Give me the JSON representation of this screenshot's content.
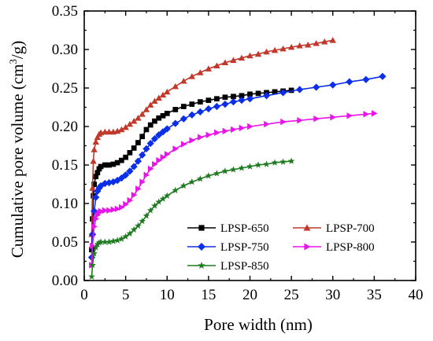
{
  "chart_data": {
    "type": "line",
    "title": "",
    "xlabel": "Pore width (nm)",
    "ylabel_parts": [
      "Cumulative pore volume (cm",
      "3",
      "/g)"
    ],
    "xlim": [
      0,
      40
    ],
    "ylim": [
      0.0,
      0.35
    ],
    "xticks": [
      "0",
      "5",
      "10",
      "15",
      "20",
      "25",
      "30",
      "35",
      "40"
    ],
    "yticks": [
      "0.00",
      "0.05",
      "0.10",
      "0.15",
      "0.20",
      "0.25",
      "0.30",
      "0.35"
    ],
    "grid": false,
    "legend_position": "bottom-right",
    "series": [
      {
        "name": "LPSP-650",
        "color": "#000000",
        "marker": "square",
        "points": [
          [
            0.9,
            0.04
          ],
          [
            1.0,
            0.08
          ],
          [
            1.1,
            0.11
          ],
          [
            1.2,
            0.125
          ],
          [
            1.4,
            0.135
          ],
          [
            1.6,
            0.14
          ],
          [
            1.8,
            0.145
          ],
          [
            2.0,
            0.148
          ],
          [
            2.5,
            0.15
          ],
          [
            3.0,
            0.15
          ],
          [
            3.5,
            0.151
          ],
          [
            4.0,
            0.153
          ],
          [
            4.5,
            0.156
          ],
          [
            5.0,
            0.16
          ],
          [
            5.5,
            0.166
          ],
          [
            6.0,
            0.172
          ],
          [
            6.5,
            0.179
          ],
          [
            7.0,
            0.187
          ],
          [
            7.5,
            0.196
          ],
          [
            8.0,
            0.202
          ],
          [
            8.5,
            0.207
          ],
          [
            9.0,
            0.211
          ],
          [
            9.5,
            0.214
          ],
          [
            10.0,
            0.217
          ],
          [
            11.0,
            0.222
          ],
          [
            12.0,
            0.226
          ],
          [
            13.0,
            0.229
          ],
          [
            14.0,
            0.232
          ],
          [
            15.0,
            0.234
          ],
          [
            16.0,
            0.236
          ],
          [
            17.0,
            0.238
          ],
          [
            18.0,
            0.239
          ],
          [
            19.0,
            0.24
          ],
          [
            20.0,
            0.242
          ],
          [
            21.0,
            0.243
          ],
          [
            22.0,
            0.244
          ],
          [
            23.0,
            0.245
          ],
          [
            24.0,
            0.246
          ],
          [
            25.0,
            0.247
          ]
        ]
      },
      {
        "name": "LPSP-700",
        "color": "#c0392b",
        "marker": "triangle-up",
        "points": [
          [
            0.9,
            0.06
          ],
          [
            1.0,
            0.12
          ],
          [
            1.1,
            0.155
          ],
          [
            1.2,
            0.17
          ],
          [
            1.4,
            0.18
          ],
          [
            1.6,
            0.186
          ],
          [
            1.8,
            0.19
          ],
          [
            2.0,
            0.192
          ],
          [
            2.5,
            0.193
          ],
          [
            3.0,
            0.193
          ],
          [
            3.5,
            0.193
          ],
          [
            4.0,
            0.194
          ],
          [
            4.5,
            0.196
          ],
          [
            5.0,
            0.199
          ],
          [
            5.5,
            0.203
          ],
          [
            6.0,
            0.207
          ],
          [
            6.5,
            0.211
          ],
          [
            7.0,
            0.216
          ],
          [
            7.5,
            0.222
          ],
          [
            8.0,
            0.228
          ],
          [
            8.5,
            0.233
          ],
          [
            9.0,
            0.237
          ],
          [
            9.5,
            0.241
          ],
          [
            10.0,
            0.245
          ],
          [
            11.0,
            0.252
          ],
          [
            12.0,
            0.259
          ],
          [
            13.0,
            0.265
          ],
          [
            14.0,
            0.27
          ],
          [
            15.0,
            0.275
          ],
          [
            16.0,
            0.279
          ],
          [
            17.0,
            0.283
          ],
          [
            18.0,
            0.286
          ],
          [
            19.0,
            0.289
          ],
          [
            20.0,
            0.292
          ],
          [
            21.0,
            0.294
          ],
          [
            22.0,
            0.297
          ],
          [
            23.0,
            0.299
          ],
          [
            24.0,
            0.301
          ],
          [
            25.0,
            0.303
          ],
          [
            26.0,
            0.305
          ],
          [
            27.0,
            0.306
          ],
          [
            28.0,
            0.308
          ],
          [
            29.0,
            0.31
          ],
          [
            30.0,
            0.312
          ]
        ]
      },
      {
        "name": "LPSP-750",
        "color": "#0b2ee8",
        "marker": "diamond",
        "points": [
          [
            0.9,
            0.03
          ],
          [
            1.0,
            0.06
          ],
          [
            1.2,
            0.09
          ],
          [
            1.4,
            0.108
          ],
          [
            1.6,
            0.116
          ],
          [
            1.8,
            0.12
          ],
          [
            2.0,
            0.123
          ],
          [
            2.5,
            0.126
          ],
          [
            3.0,
            0.127
          ],
          [
            3.5,
            0.128
          ],
          [
            4.0,
            0.13
          ],
          [
            4.5,
            0.133
          ],
          [
            5.0,
            0.137
          ],
          [
            5.5,
            0.142
          ],
          [
            6.0,
            0.148
          ],
          [
            6.5,
            0.155
          ],
          [
            7.0,
            0.163
          ],
          [
            7.5,
            0.171
          ],
          [
            8.0,
            0.178
          ],
          [
            8.5,
            0.184
          ],
          [
            9.0,
            0.189
          ],
          [
            9.5,
            0.193
          ],
          [
            10.0,
            0.197
          ],
          [
            11.0,
            0.204
          ],
          [
            12.0,
            0.21
          ],
          [
            13.0,
            0.215
          ],
          [
            14.0,
            0.219
          ],
          [
            15.0,
            0.223
          ],
          [
            16.0,
            0.226
          ],
          [
            17.0,
            0.229
          ],
          [
            18.0,
            0.232
          ],
          [
            19.0,
            0.234
          ],
          [
            20.0,
            0.236
          ],
          [
            22.0,
            0.24
          ],
          [
            24.0,
            0.244
          ],
          [
            26.0,
            0.248
          ],
          [
            28.0,
            0.251
          ],
          [
            30.0,
            0.254
          ],
          [
            32.0,
            0.258
          ],
          [
            34.0,
            0.261
          ],
          [
            36.0,
            0.265
          ]
        ]
      },
      {
        "name": "LPSP-800",
        "color": "#e815e8",
        "marker": "triangle-right",
        "points": [
          [
            0.9,
            0.02
          ],
          [
            1.0,
            0.045
          ],
          [
            1.2,
            0.07
          ],
          [
            1.4,
            0.08
          ],
          [
            1.6,
            0.085
          ],
          [
            1.8,
            0.088
          ],
          [
            2.0,
            0.09
          ],
          [
            2.5,
            0.091
          ],
          [
            3.0,
            0.091
          ],
          [
            3.5,
            0.092
          ],
          [
            4.0,
            0.093
          ],
          [
            4.5,
            0.095
          ],
          [
            5.0,
            0.099
          ],
          [
            5.5,
            0.104
          ],
          [
            6.0,
            0.111
          ],
          [
            6.5,
            0.119
          ],
          [
            7.0,
            0.128
          ],
          [
            7.5,
            0.137
          ],
          [
            8.0,
            0.145
          ],
          [
            8.5,
            0.151
          ],
          [
            9.0,
            0.156
          ],
          [
            9.5,
            0.16
          ],
          [
            10.0,
            0.164
          ],
          [
            11.0,
            0.171
          ],
          [
            12.0,
            0.177
          ],
          [
            13.0,
            0.182
          ],
          [
            14.0,
            0.186
          ],
          [
            15.0,
            0.189
          ],
          [
            16.0,
            0.192
          ],
          [
            17.0,
            0.194
          ],
          [
            18.0,
            0.196
          ],
          [
            19.0,
            0.198
          ],
          [
            20.0,
            0.2
          ],
          [
            22.0,
            0.203
          ],
          [
            24.0,
            0.206
          ],
          [
            26.0,
            0.208
          ],
          [
            28.0,
            0.21
          ],
          [
            30.0,
            0.212
          ],
          [
            32.0,
            0.214
          ],
          [
            34.0,
            0.216
          ],
          [
            35.0,
            0.217
          ]
        ]
      },
      {
        "name": "LPSP-850",
        "color": "#1e7a1e",
        "marker": "star",
        "points": [
          [
            0.9,
            0.005
          ],
          [
            1.0,
            0.02
          ],
          [
            1.2,
            0.035
          ],
          [
            1.4,
            0.043
          ],
          [
            1.6,
            0.047
          ],
          [
            1.8,
            0.049
          ],
          [
            2.0,
            0.05
          ],
          [
            2.5,
            0.05
          ],
          [
            3.0,
            0.05
          ],
          [
            3.5,
            0.051
          ],
          [
            4.0,
            0.052
          ],
          [
            4.5,
            0.054
          ],
          [
            5.0,
            0.057
          ],
          [
            5.5,
            0.061
          ],
          [
            6.0,
            0.066
          ],
          [
            6.5,
            0.071
          ],
          [
            7.0,
            0.077
          ],
          [
            7.5,
            0.084
          ],
          [
            8.0,
            0.091
          ],
          [
            8.5,
            0.097
          ],
          [
            9.0,
            0.102
          ],
          [
            9.5,
            0.106
          ],
          [
            10.0,
            0.11
          ],
          [
            11.0,
            0.117
          ],
          [
            12.0,
            0.123
          ],
          [
            13.0,
            0.128
          ],
          [
            14.0,
            0.132
          ],
          [
            15.0,
            0.136
          ],
          [
            16.0,
            0.139
          ],
          [
            17.0,
            0.142
          ],
          [
            18.0,
            0.144
          ],
          [
            19.0,
            0.146
          ],
          [
            20.0,
            0.148
          ],
          [
            21.0,
            0.15
          ],
          [
            22.0,
            0.151
          ],
          [
            23.0,
            0.153
          ],
          [
            24.0,
            0.154
          ],
          [
            25.0,
            0.155
          ]
        ]
      }
    ],
    "legend_layout": [
      [
        "LPSP-650",
        "LPSP-700"
      ],
      [
        "LPSP-750",
        "LPSP-800"
      ],
      [
        "LPSP-850"
      ]
    ]
  }
}
